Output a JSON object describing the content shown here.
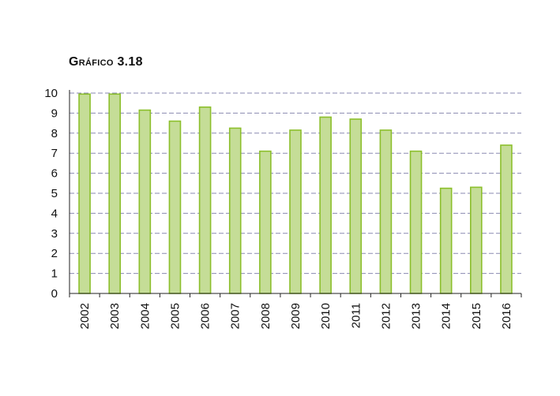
{
  "chart_data": {
    "type": "bar",
    "title": "Gráfico 3.18",
    "xlabel": "",
    "ylabel": "",
    "categories": [
      "2002",
      "2003",
      "2004",
      "2005",
      "2006",
      "2007",
      "2008",
      "2009",
      "2010",
      "2011",
      "2012",
      "2013",
      "2014",
      "2015",
      "2016"
    ],
    "series": [
      {
        "values": [
          9.95,
          9.95,
          9.15,
          8.6,
          9.3,
          8.25,
          7.1,
          8.15,
          8.8,
          8.7,
          8.15,
          7.1,
          5.25,
          5.3,
          7.4
        ]
      }
    ],
    "ylim": [
      0,
      10
    ],
    "yticks": [
      0,
      1,
      2,
      3,
      4,
      5,
      6,
      7,
      8,
      9,
      10
    ],
    "grid": true,
    "legend": "none",
    "colors": {
      "bar_fill": "#c5dd97",
      "bar_stroke": "#8cbf2c",
      "grid": "#8a8ab0",
      "axis": "#222222"
    }
  }
}
